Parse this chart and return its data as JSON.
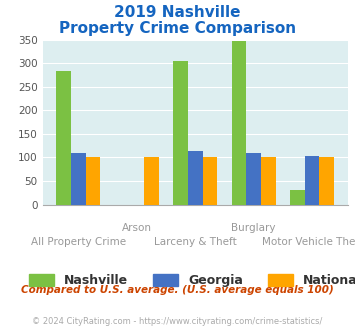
{
  "title_line1": "2019 Nashville",
  "title_line2": "Property Crime Comparison",
  "categories": [
    "All Property Crime",
    "Arson",
    "Larceny & Theft",
    "Burglary",
    "Motor Vehicle Theft"
  ],
  "x_labels_top": [
    "",
    "Arson",
    "",
    "Burglary",
    ""
  ],
  "x_labels_bottom": [
    "All Property Crime",
    "",
    "Larceny & Theft",
    "",
    "Motor Vehicle Theft"
  ],
  "nashville": [
    283,
    0,
    305,
    348,
    30
  ],
  "georgia": [
    110,
    0,
    114,
    109,
    103
  ],
  "national": [
    100,
    100,
    100,
    100,
    100
  ],
  "nashville_color": "#7bc143",
  "georgia_color": "#4472c4",
  "national_color": "#ffa500",
  "ylim": [
    0,
    350
  ],
  "yticks": [
    0,
    50,
    100,
    150,
    200,
    250,
    300,
    350
  ],
  "background_color": "#ddeef0",
  "title_color": "#1565c0",
  "label_color": "#999999",
  "footnote": "Compared to U.S. average. (U.S. average equals 100)",
  "footnote2": "© 2024 CityRating.com - https://www.cityrating.com/crime-statistics/",
  "footnote_color": "#cc4400",
  "footnote2_color": "#aaaaaa",
  "legend_labels": [
    "Nashville",
    "Georgia",
    "National"
  ]
}
